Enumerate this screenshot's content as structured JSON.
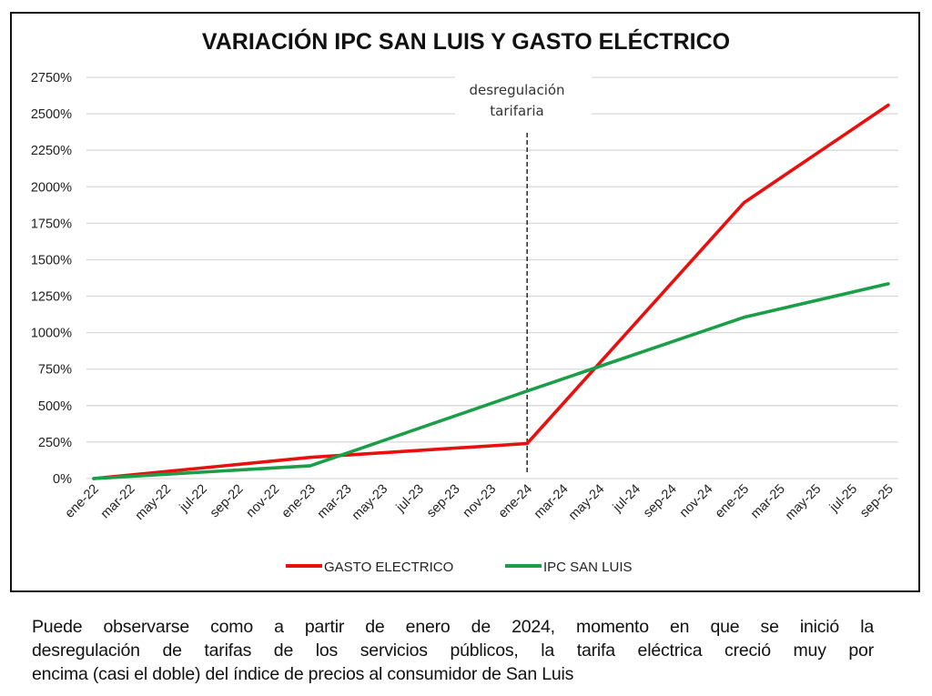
{
  "chart_data": {
    "type": "line",
    "title": "VARIACIÓN IPC SAN LUIS Y GASTO ELÉCTRICO",
    "xlabel": "",
    "ylabel": "",
    "ylim": [
      0,
      2750
    ],
    "y_tick_values": [
      0,
      250,
      500,
      750,
      1000,
      1250,
      1500,
      1750,
      2000,
      2250,
      2500,
      2750
    ],
    "y_tick_labels": [
      "0%",
      "250%",
      "500%",
      "750%",
      "1000%",
      "1250%",
      "1500%",
      "1750%",
      "2000%",
      "2250%",
      "2500%",
      "2750%"
    ],
    "x_tick_labels": [
      "ene-22",
      "mar-22",
      "may-22",
      "jul-22",
      "sep-22",
      "nov-22",
      "ene-23",
      "mar-23",
      "may-23",
      "jul-23",
      "sep-23",
      "nov-23",
      "ene-24",
      "mar-24",
      "may-24",
      "jul-24",
      "sep-24",
      "nov-24",
      "ene-25",
      "mar-25",
      "may-25",
      "jul-25",
      "sep-25"
    ],
    "x_month_range": [
      0,
      44
    ],
    "grid": true,
    "legend_position": "bottom",
    "series": [
      {
        "name": "GASTO ELECTRICO",
        "color": "#e8100f",
        "points": [
          {
            "x_label": "ene-22",
            "month": 0,
            "y": 0
          },
          {
            "x_label": "ene-23",
            "month": 12,
            "y": 145
          },
          {
            "x_label": "ene-24",
            "month": 24,
            "y": 240
          },
          {
            "x_label": "ene-25",
            "month": 36,
            "y": 1890
          },
          {
            "x_label": "sep-25",
            "month": 44,
            "y": 2560
          }
        ]
      },
      {
        "name": "IPC SAN LUIS",
        "color": "#1a9e47",
        "points": [
          {
            "x_label": "ene-22",
            "month": 0,
            "y": 0
          },
          {
            "x_label": "ene-23",
            "month": 12,
            "y": 88
          },
          {
            "x_label": "ene-24",
            "month": 24,
            "y": 600
          },
          {
            "x_label": "ene-25",
            "month": 36,
            "y": 1105
          },
          {
            "x_label": "sep-25",
            "month": 44,
            "y": 1335
          }
        ]
      }
    ],
    "annotation": {
      "lines": [
        "desregulación",
        "tarifaria"
      ],
      "month": 24,
      "style": "dashed vertical line"
    }
  },
  "caption": {
    "lines": [
      "Puede observarse como a partir de enero de 2024, momento en que se inició la",
      "desregulación de tarifas de los servicios públicos, la tarifa eléctrica creció muy por",
      "encima (casi el doble) del índice de precios al consumidor de San Luis"
    ]
  },
  "colors": {
    "frame": "#111111",
    "grid": "#d9d9d9",
    "text": "#222222",
    "annotation_line": "#333333"
  }
}
